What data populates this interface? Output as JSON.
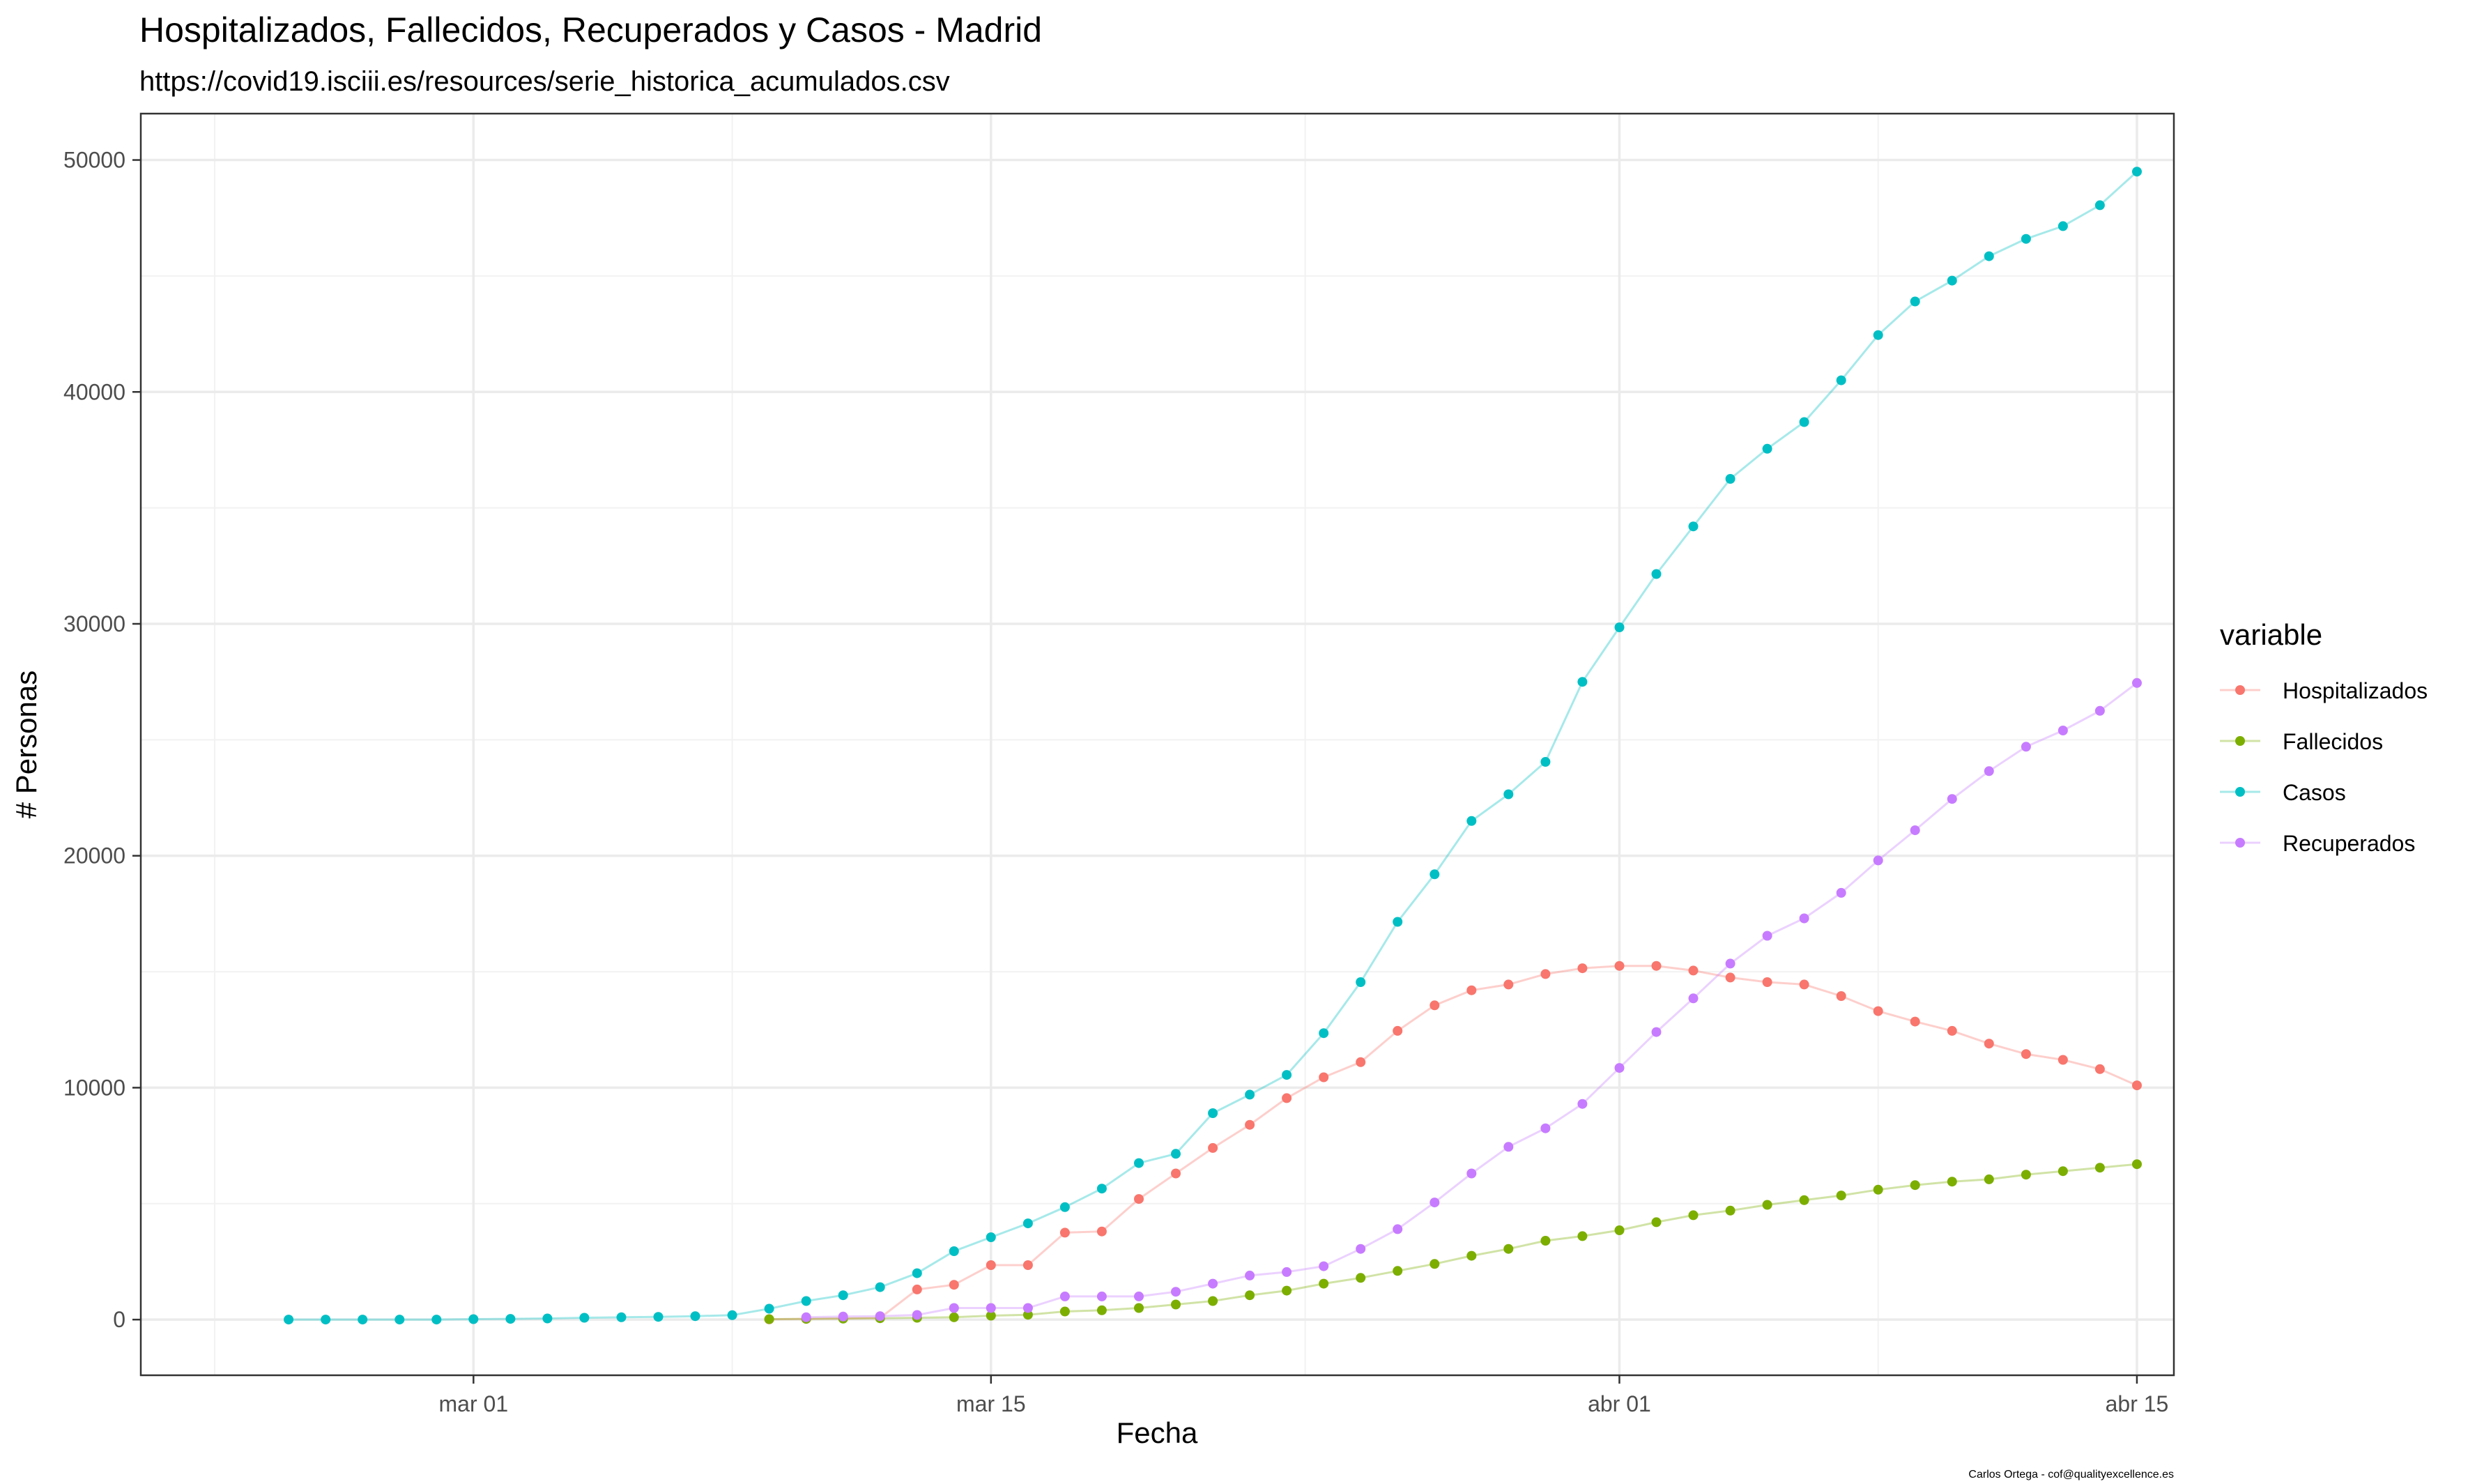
{
  "chart_data": {
    "type": "line",
    "title": "Hospitalizados, Fallecidos, Recuperados y Casos - Madrid",
    "subtitle": "https://covid19.isciii.es/resources/serie_historica_acumulados.csv",
    "xlabel": "Fecha",
    "ylabel": "# Personas",
    "caption": "Carlos Ortega - cof@qualityexcellence.es",
    "legend": {
      "title": "variable",
      "position": "right"
    },
    "grid": true,
    "x_axis": {
      "type": "date",
      "range": [
        "2020-02-21",
        "2020-04-16"
      ],
      "ticks": [
        {
          "date": "2020-03-01",
          "label": "mar 01"
        },
        {
          "date": "2020-03-15",
          "label": "mar 15"
        },
        {
          "date": "2020-04-01",
          "label": "abr 01"
        },
        {
          "date": "2020-04-15",
          "label": "abr 15"
        }
      ]
    },
    "y_axis": {
      "ylim": [
        -2400,
        52000
      ],
      "ticks": [
        0,
        10000,
        20000,
        30000,
        40000,
        50000
      ]
    },
    "series": [
      {
        "name": "Hospitalizados",
        "color": "#F8766D",
        "start_date": "2020-03-09",
        "values": [
          10,
          30,
          50,
          70,
          1300,
          1500,
          2350,
          2350,
          3750,
          3800,
          5200,
          6300,
          7400,
          8400,
          9550,
          10450,
          11100,
          12450,
          13550,
          14200,
          14450,
          14900,
          15150,
          15250,
          15250,
          15050,
          14750,
          14550,
          14450,
          13950,
          13300,
          12850,
          12450,
          11900,
          11450,
          11200,
          10800,
          10100
        ]
      },
      {
        "name": "Fallecidos",
        "color": "#7CAE00",
        "start_date": "2020-03-09",
        "values": [
          20,
          30,
          40,
          60,
          80,
          100,
          170,
          210,
          350,
          400,
          500,
          650,
          800,
          1050,
          1250,
          1550,
          1800,
          2100,
          2400,
          2750,
          3050,
          3400,
          3600,
          3850,
          4200,
          4500,
          4700,
          4950,
          5150,
          5350,
          5600,
          5800,
          5950,
          6050,
          6250,
          6400,
          6550,
          6700
        ]
      },
      {
        "name": "Casos",
        "color": "#00BFC4",
        "start_date": "2020-02-25",
        "values": [
          0,
          0,
          0,
          0,
          0,
          20,
          30,
          50,
          80,
          100,
          120,
          150,
          190,
          470,
          800,
          1050,
          1400,
          2000,
          2950,
          3550,
          4150,
          4850,
          5650,
          6750,
          7150,
          8900,
          9700,
          10550,
          12350,
          14550,
          17150,
          19200,
          21500,
          22650,
          24050,
          27500,
          29850,
          32150,
          34200,
          36250,
          37550,
          38700,
          40500,
          42450,
          43900,
          44800,
          45850,
          46600,
          47150,
          48050,
          49500
        ]
      },
      {
        "name": "Recuperados",
        "color": "#C77CFF",
        "start_date": "2020-03-10",
        "values": [
          100,
          130,
          150,
          200,
          500,
          500,
          500,
          1000,
          1000,
          1000,
          1200,
          1550,
          1900,
          2050,
          2300,
          3050,
          3900,
          5050,
          6300,
          7450,
          8250,
          9300,
          10850,
          12400,
          13850,
          15350,
          16550,
          17300,
          18400,
          19800,
          21100,
          22450,
          23650,
          24700,
          25400,
          26250,
          27450
        ]
      }
    ]
  }
}
